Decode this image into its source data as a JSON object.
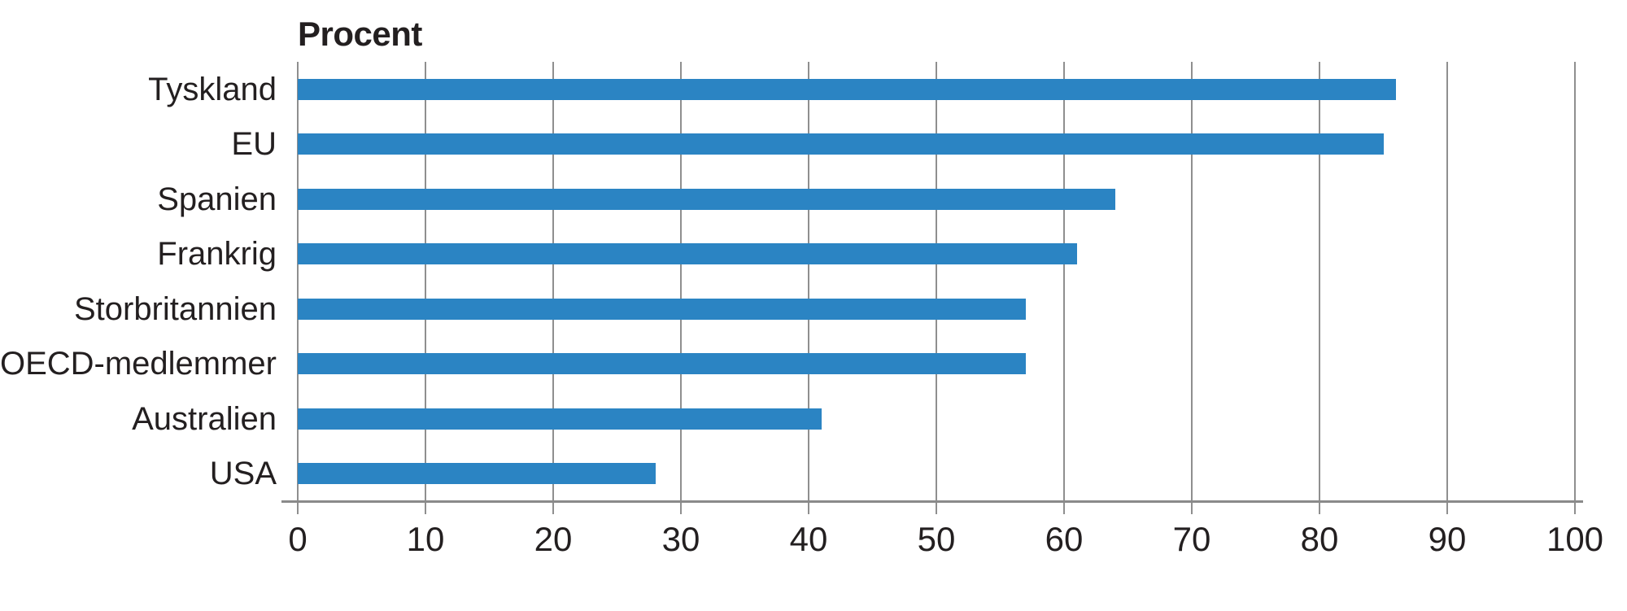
{
  "page": {
    "background": "#ffffff"
  },
  "chart_data": {
    "type": "bar",
    "orientation": "horizontal",
    "title": "Procent",
    "categories": [
      "Tyskland",
      "EU",
      "Spanien",
      "Frankrig",
      "Storbritannien",
      "OECD-medlemmer",
      "Australien",
      "USA"
    ],
    "values": [
      86,
      85,
      64,
      61,
      57,
      57,
      41,
      28
    ],
    "xlabel": "",
    "xlim": [
      0,
      100
    ],
    "x_ticks": [
      0,
      10,
      20,
      30,
      40,
      50,
      60,
      70,
      80,
      90,
      100
    ],
    "grid": true,
    "legend_position": "none",
    "colors": {
      "bar": "#2b84c3",
      "gridline": "#8f8f8f",
      "axis": "#8a8a8a",
      "text": "#231f20",
      "background": "#ffffff"
    }
  }
}
